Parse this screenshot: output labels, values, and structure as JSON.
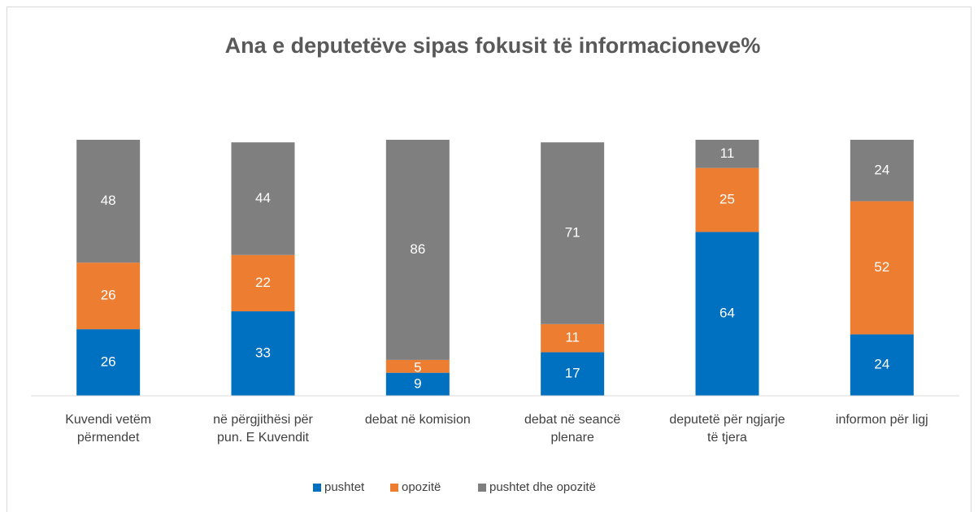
{
  "chart_data": {
    "type": "stacked_bar",
    "title": "Ana e deputetëve sipas fokusit të informacioneve%",
    "categories": [
      "Kuvendi vetëm përmendet",
      "në përgjithësi për pun. E Kuvendit",
      "debat në komision",
      "debat në seancë plenare",
      "deputetë për ngjarje të tjera",
      "informon për ligj"
    ],
    "series": [
      {
        "name": "pushtet",
        "color": "#0070c0",
        "values": [
          26,
          33,
          9,
          17,
          64,
          24
        ]
      },
      {
        "name": "opozitë",
        "color": "#ed7d31",
        "values": [
          26,
          22,
          5,
          11,
          25,
          52
        ]
      },
      {
        "name": "pushtet dhe opozitë",
        "color": "#7f7f7f",
        "values": [
          48,
          44,
          86,
          71,
          11,
          24
        ]
      }
    ],
    "ylim": [
      0,
      100
    ]
  }
}
